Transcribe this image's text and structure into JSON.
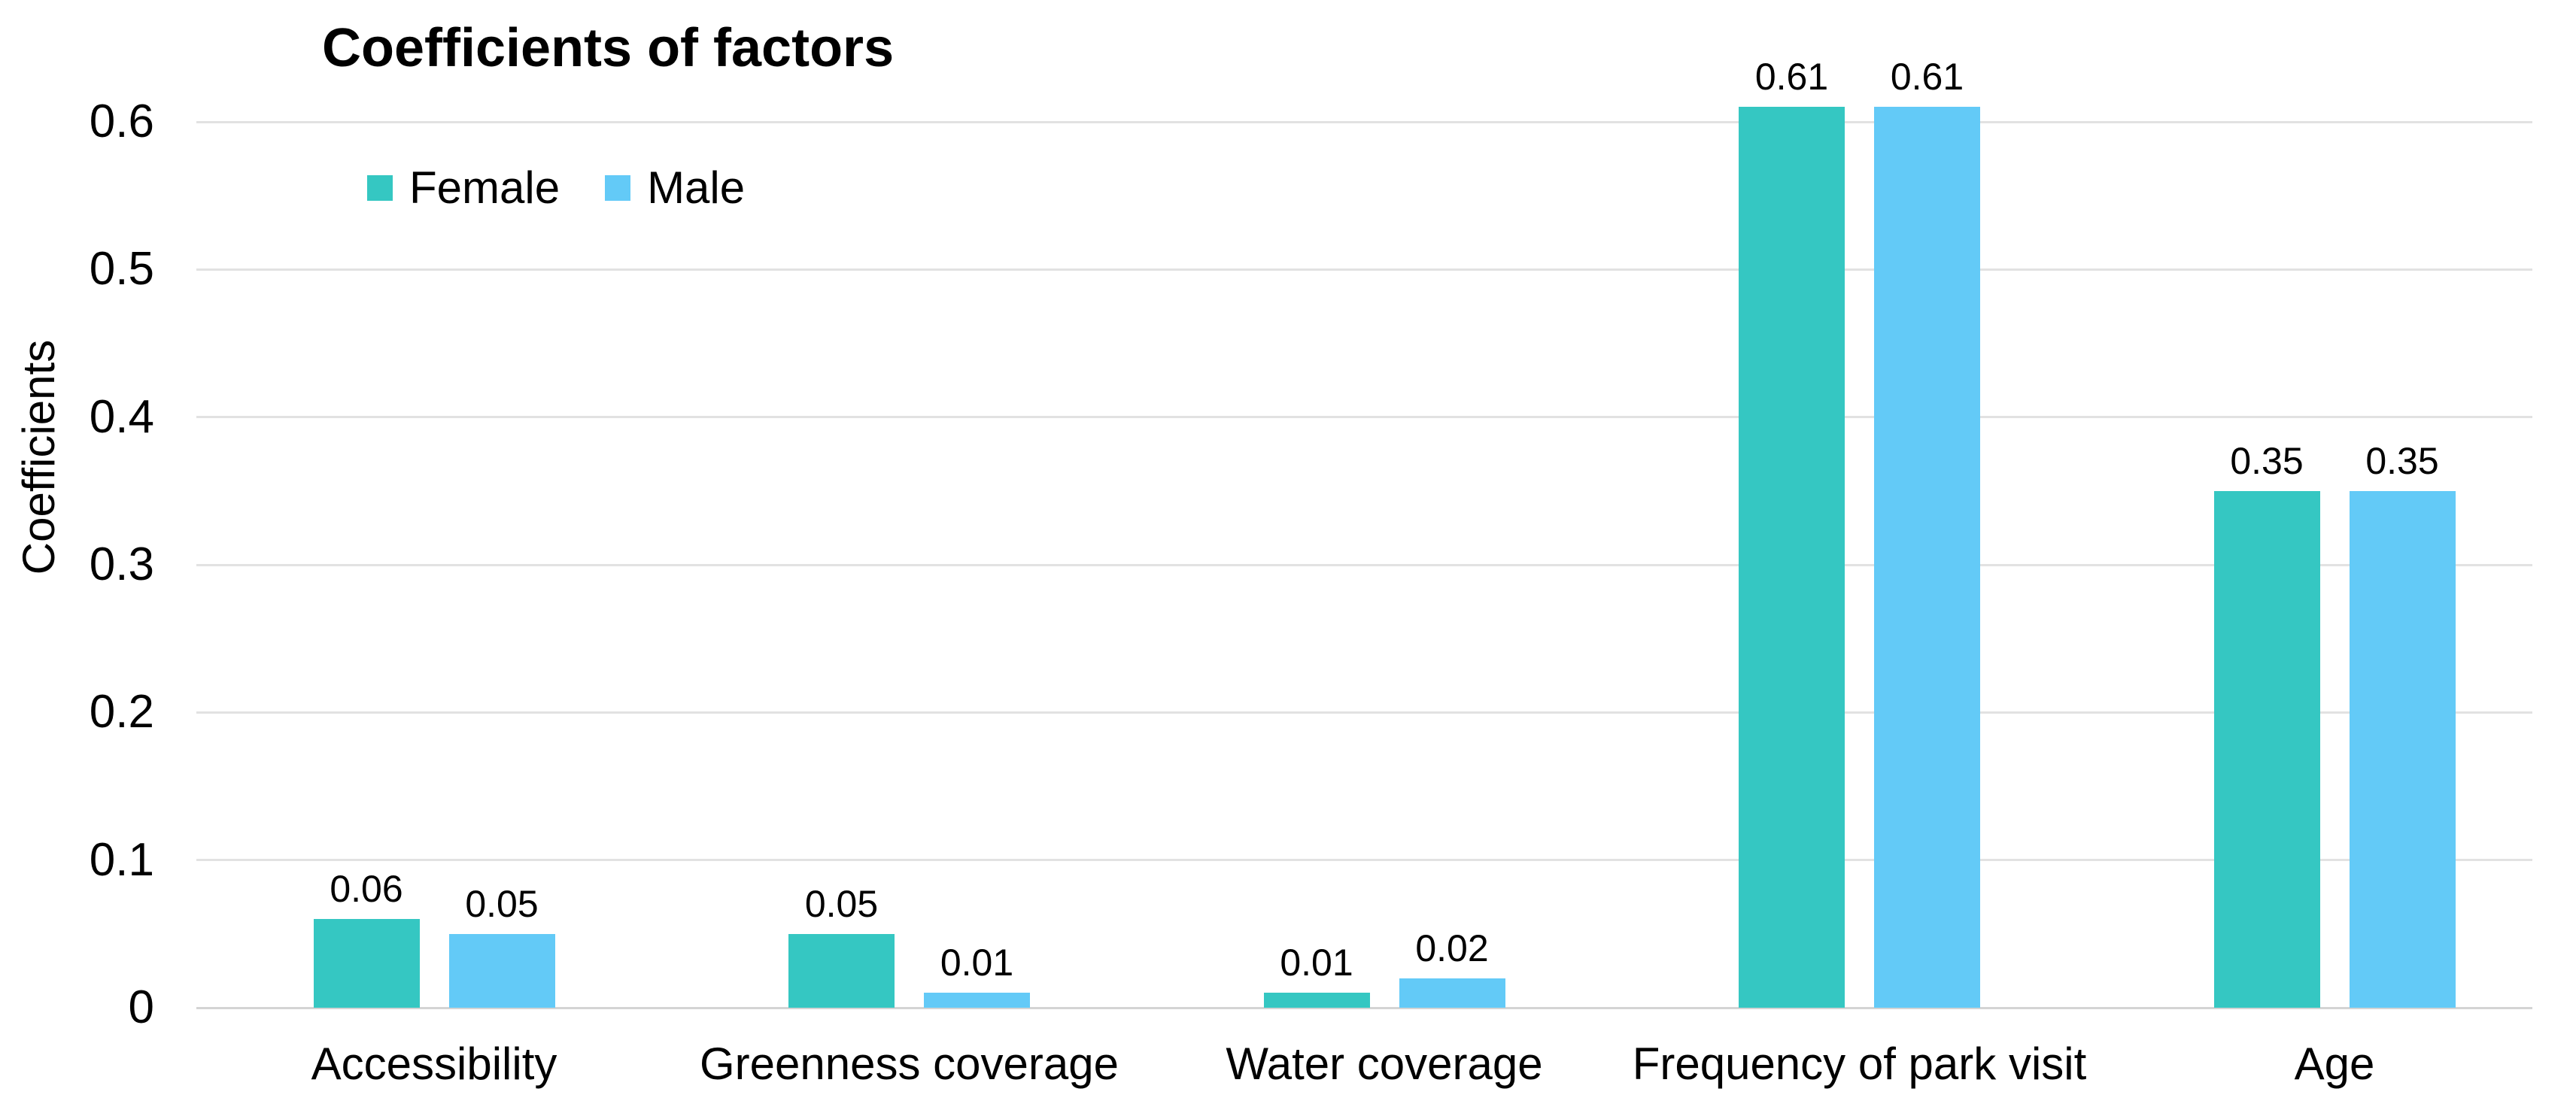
{
  "chart_data": {
    "type": "bar",
    "title": "Coefficients of factors",
    "xlabel": "",
    "ylabel": "Coefficients",
    "categories": [
      "Accessibility",
      "Greenness coverage",
      "Water coverage",
      "Frequency of park visit",
      "Age"
    ],
    "series": [
      {
        "name": "Female",
        "color": "#35C7C2",
        "values": [
          0.06,
          0.05,
          0.01,
          0.61,
          0.35
        ],
        "labels": [
          "0.06",
          "0.05",
          "0.01",
          "0.61",
          "0.35"
        ]
      },
      {
        "name": "Male",
        "color": "#63CAF7",
        "values": [
          0.05,
          0.01,
          0.02,
          0.61,
          0.35
        ],
        "labels": [
          "0.05",
          "0.01",
          "0.02",
          "0.61",
          "0.35"
        ]
      }
    ],
    "ylim": [
      0,
      0.65
    ],
    "yticks": [
      0,
      0.1,
      0.2,
      0.3,
      0.4,
      0.5,
      0.6
    ],
    "ytick_labels": [
      "0",
      "0.1",
      "0.2",
      "0.3",
      "0.4",
      "0.5",
      "0.6"
    ],
    "grid": true,
    "legend_position": "top-left",
    "bar_label_position": "above"
  },
  "colors": {
    "grid_line": "#e2e2e2",
    "axis_line": "#d4d4d4",
    "text": "#000000",
    "background": "#ffffff"
  }
}
